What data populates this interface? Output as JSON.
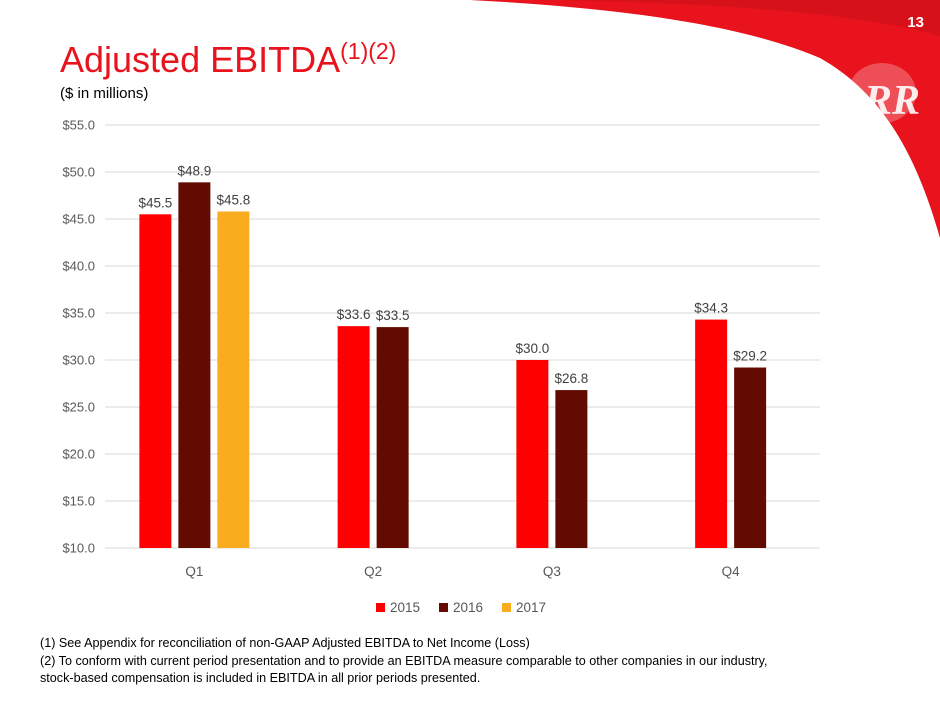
{
  "slide": {
    "page_number": "13",
    "title": "Adjusted EBITDA",
    "title_superscript": "(1)(2)",
    "subtitle": "($ in millions)",
    "accent_color": "#e8131c",
    "logo_icon": "rr-logo-icon",
    "logo_text": "RR"
  },
  "footnotes": [
    "(1) See Appendix for reconciliation of non-GAAP Adjusted EBITDA to Net Income (Loss)",
    "(2) To conform with current period presentation and to provide an EBITDA measure comparable to other companies in our industry,",
    "stock-based compensation is included in EBITDA in all prior periods presented."
  ],
  "chart_data": {
    "type": "bar",
    "categories": [
      "Q1",
      "Q2",
      "Q3",
      "Q4"
    ],
    "series": [
      {
        "name": "2015",
        "color": "#ff0000",
        "values": [
          45.5,
          33.6,
          30.0,
          34.3
        ],
        "labels": [
          "$45.5",
          "$33.6",
          "$30.0",
          "$34.3"
        ]
      },
      {
        "name": "2016",
        "color": "#630b00",
        "values": [
          48.9,
          33.5,
          26.8,
          29.2
        ],
        "labels": [
          "$48.9",
          "$33.5",
          "$26.8",
          "$29.2"
        ]
      },
      {
        "name": "2017",
        "color": "#f9ac1d",
        "values": [
          45.8,
          null,
          null,
          null
        ],
        "labels": [
          "$45.8",
          null,
          null,
          null
        ]
      }
    ],
    "ylim": [
      10,
      55
    ],
    "yticks": [
      10,
      15,
      20,
      25,
      30,
      35,
      40,
      45,
      50,
      55
    ],
    "ytick_labels": [
      "$10.0",
      "$15.0",
      "$20.0",
      "$25.0",
      "$30.0",
      "$35.0",
      "$40.0",
      "$45.0",
      "$50.0",
      "$55.0"
    ],
    "grid": true,
    "legend_position": "bottom"
  }
}
